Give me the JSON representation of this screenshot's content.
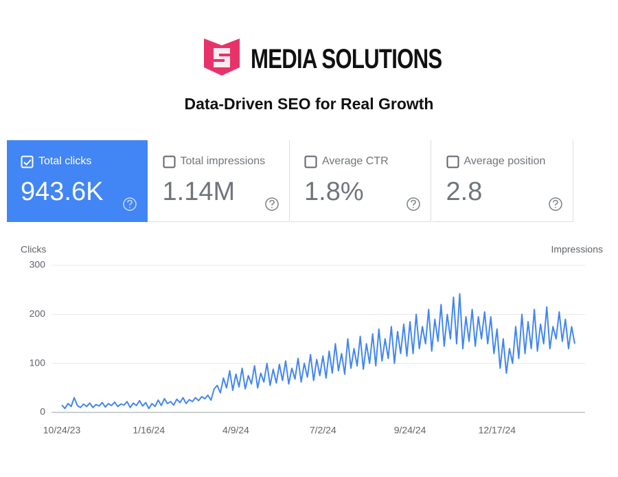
{
  "header": {
    "brand": "MEDIA SOLUTIONS",
    "tagline": "Data-Driven SEO for Real Growth"
  },
  "metrics": [
    {
      "label": "Total clicks",
      "value": "943.6K"
    },
    {
      "label": "Total impressions",
      "value": "1.14M"
    },
    {
      "label": "Average CTR",
      "value": "1.8%"
    },
    {
      "label": "Average position",
      "value": "2.8"
    }
  ],
  "chart_data": {
    "type": "line",
    "y_label": "Clicks",
    "y2_label": "Impressions",
    "categories": [
      "10/24/23",
      null,
      null,
      null,
      null,
      null,
      null,
      null,
      null,
      null,
      null,
      null,
      null,
      null,
      null,
      null,
      null,
      null,
      null,
      null,
      null,
      null,
      null,
      null,
      null,
      null,
      null,
      null,
      "1/16/24",
      null,
      null,
      null,
      null,
      null,
      null,
      null,
      null,
      null,
      null,
      null,
      null,
      null,
      null,
      null,
      null,
      null,
      null,
      null,
      null,
      null,
      null,
      null,
      null,
      null,
      null,
      null,
      "4/9/24",
      null,
      null,
      null,
      null,
      null,
      null,
      null,
      null,
      null,
      null,
      null,
      null,
      null,
      null,
      null,
      null,
      null,
      null,
      null,
      null,
      null,
      null,
      null,
      null,
      null,
      null,
      null,
      "7/2/24",
      null,
      null,
      null,
      null,
      null,
      null,
      null,
      null,
      null,
      null,
      null,
      null,
      null,
      null,
      null,
      null,
      null,
      null,
      null,
      null,
      null,
      null,
      null,
      null,
      null,
      null,
      null,
      "9/24/24",
      null,
      null,
      null,
      null,
      null,
      null,
      null,
      null,
      null,
      null,
      null,
      null,
      null,
      null,
      null,
      null,
      null,
      null,
      null,
      null,
      null,
      null,
      null,
      null,
      null,
      null,
      null,
      "12/17/24",
      null,
      null,
      null,
      null,
      null,
      null,
      null,
      null,
      null,
      null,
      null,
      null,
      null,
      null,
      null,
      null,
      null,
      null,
      null,
      null,
      null,
      null,
      null,
      null,
      null
    ],
    "series": [
      {
        "name": "Clicks",
        "color": "#4285f4",
        "values": [
          15,
          8,
          18,
          12,
          30,
          14,
          10,
          17,
          12,
          19,
          10,
          16,
          13,
          20,
          11,
          18,
          14,
          21,
          12,
          17,
          15,
          22,
          10,
          19,
          14,
          24,
          13,
          20,
          8,
          18,
          12,
          25,
          14,
          28,
          18,
          22,
          15,
          27,
          20,
          30,
          18,
          26,
          22,
          30,
          24,
          32,
          28,
          35,
          25,
          48,
          55,
          40,
          70,
          50,
          85,
          45,
          78,
          52,
          90,
          48,
          75,
          58,
          95,
          50,
          80,
          62,
          100,
          55,
          88,
          60,
          98,
          65,
          105,
          58,
          90,
          68,
          110,
          62,
          100,
          72,
          118,
          65,
          108,
          75,
          115,
          70,
          125,
          80,
          140,
          85,
          120,
          78,
          150,
          90,
          130,
          95,
          155,
          88,
          140,
          100,
          160,
          95,
          170,
          105,
          150,
          110,
          175,
          100,
          165,
          120,
          180,
          115,
          185,
          120,
          200,
          130,
          175,
          140,
          210,
          125,
          190,
          145,
          220,
          135,
          200,
          150,
          235,
          140,
          242,
          130,
          195,
          145,
          210,
          135,
          195,
          150,
          205,
          140,
          195,
          120,
          170,
          90,
          150,
          80,
          130,
          100,
          175,
          110,
          200,
          120,
          185,
          130,
          210,
          125,
          180,
          140,
          215,
          130,
          175,
          150,
          205,
          145,
          190,
          130,
          175,
          140
        ]
      }
    ],
    "ylim": [
      0,
      300
    ],
    "yticks": [
      0,
      100,
      200,
      300
    ],
    "grid": true
  }
}
